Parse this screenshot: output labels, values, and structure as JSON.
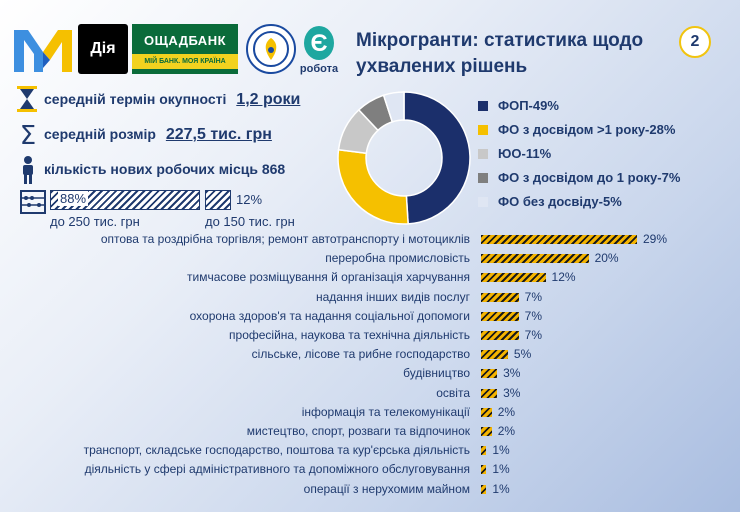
{
  "title": "Мікрогранти: статистика щодо ухвалених рішень",
  "page_number": "2",
  "logos": {
    "diia": "Дія",
    "bank_name": "ОЩАДБАНК",
    "bank_slogan": "МІЙ БАНК. МОЯ КРАЇНА",
    "robota": "робота",
    "robota_letter": "Є"
  },
  "stats": {
    "payback_label": "середній термін окупності",
    "payback_value": "1,2 роки",
    "size_label": "середній розмір",
    "size_value": "227,5 тис. грн",
    "jobs_label": "кількість нових робочих місць 868",
    "share_250_pct": "88%",
    "share_250_label": "до 250 тис. грн",
    "share_150_pct": "12%",
    "share_150_label": "до 150 тис. грн"
  },
  "colors": {
    "navy": "#1b2f6b",
    "yellow": "#f5c000",
    "lightgray": "#c8c8c8",
    "darkgray": "#7f7f7f",
    "paleblue": "#dfe6f3"
  },
  "chart_data": [
    {
      "type": "pie",
      "donut": true,
      "legend_position": "right",
      "slices": [
        {
          "label": "ФОП-49%",
          "value": 49,
          "color": "#1b2f6b"
        },
        {
          "label": "ФО з досвідом >1 року-28%",
          "value": 28,
          "color": "#f5c000"
        },
        {
          "label": "ЮО-11%",
          "value": 11,
          "color": "#c8c8c8"
        },
        {
          "label": "ФО з досвідом до 1 року-7%",
          "value": 7,
          "color": "#7f7f7f"
        },
        {
          "label": "ФО без досвіду-5%",
          "value": 5,
          "color": "#dfe6f3"
        }
      ]
    },
    {
      "type": "bar",
      "orientation": "horizontal",
      "categories": [
        "оптова та роздрібна торгівля; ремонт автотранспорту і мотоциклів",
        "переробна промисловість",
        "тимчасове розміщування й організація харчування",
        "надання інших видів послуг",
        "охорона здоров'я та надання соціальної допомоги",
        "професійна, наукова та технічна діяльність",
        "сільське, лісове та рибне господарство",
        "будівництво",
        "освіта",
        "інформація та телекомунікації",
        "мистецтво, спорт, розваги та відпочинок",
        "транспорт, складське господарство, поштова та кур'єрська діяльність",
        "діяльність у сфері адміністративного та допоміжного обслуговування",
        "операції з нерухомим майном"
      ],
      "values": [
        29,
        20,
        12,
        7,
        7,
        7,
        5,
        3,
        3,
        2,
        2,
        1,
        1,
        1
      ],
      "value_labels": [
        "29%",
        "20%",
        "12%",
        "7%",
        "7%",
        "7%",
        "5%",
        "3%",
        "3%",
        "2%",
        "2%",
        "1%",
        "1%",
        "1%"
      ]
    }
  ]
}
